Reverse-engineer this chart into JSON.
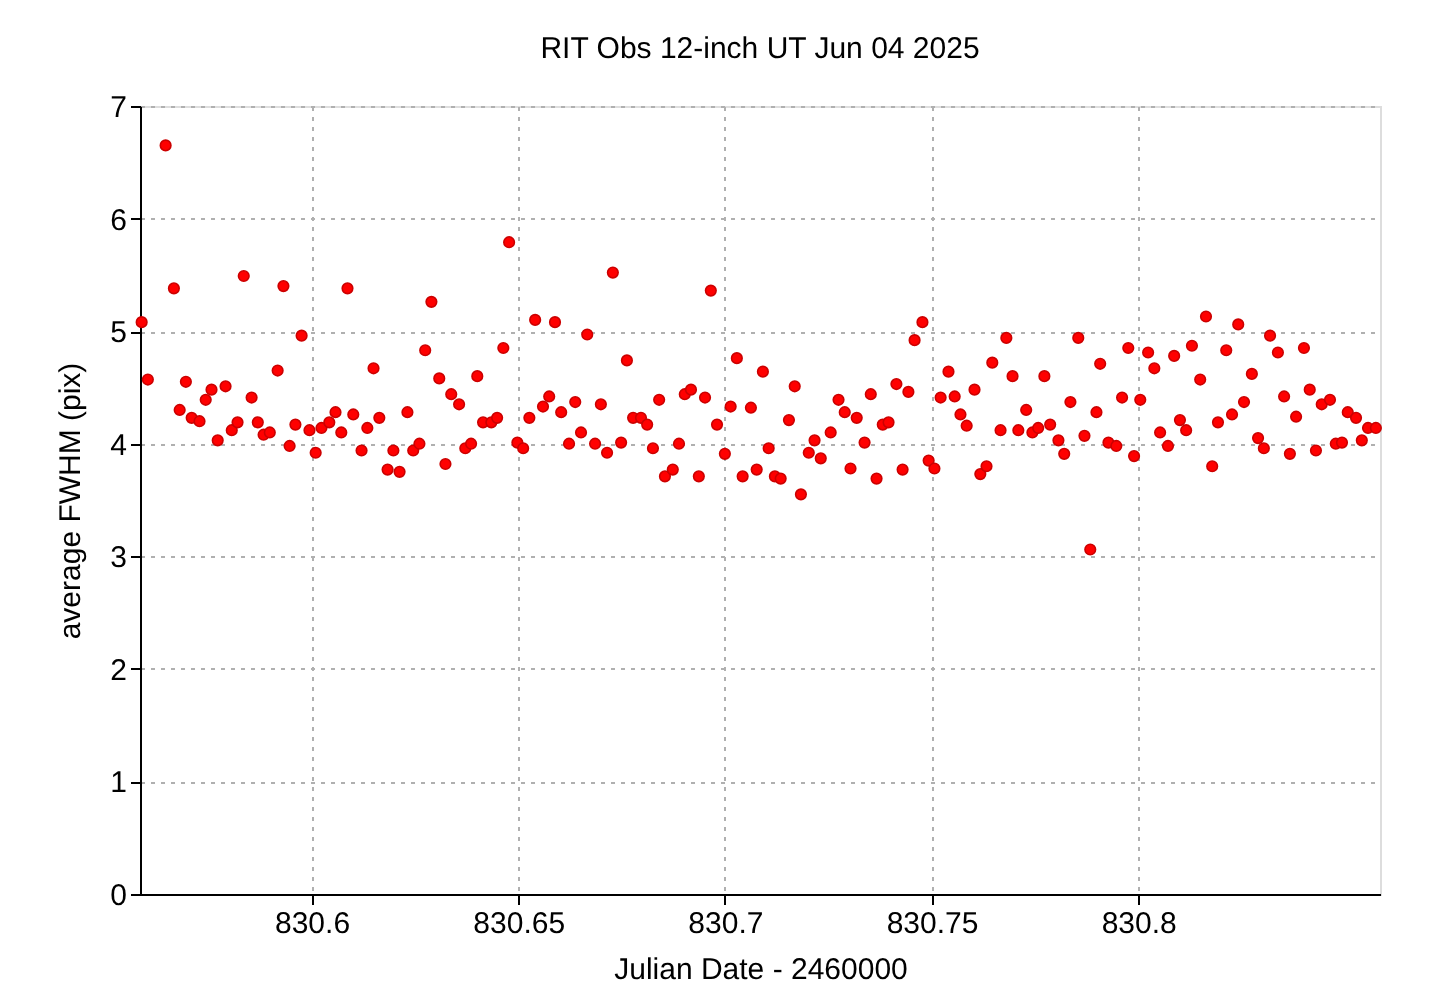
{
  "chart_data": {
    "type": "scatter",
    "title": "RIT Obs 12-inch UT Jun 04 2025",
    "xlabel": "Julian Date - 2460000",
    "ylabel": "average FWHM (pix)",
    "xlim": [
      830.5585,
      830.8585
    ],
    "ylim": [
      0,
      7
    ],
    "xticks": [
      830.6,
      830.65,
      830.7,
      830.75,
      830.8
    ],
    "yticks": [
      0,
      1,
      2,
      3,
      4,
      5,
      6,
      7
    ],
    "grid": true,
    "marker": "circle",
    "series": [
      {
        "color": "#ff0000",
        "x": [
          830.5589,
          830.5604,
          830.5647,
          830.5667,
          830.5681,
          830.5696,
          830.571,
          830.5729,
          830.5744,
          830.5758,
          830.5773,
          830.5792,
          830.5807,
          830.5821,
          830.5836,
          830.5855,
          830.587,
          830.5884,
          830.5899,
          830.5918,
          830.5932,
          830.5947,
          830.5961,
          830.5976,
          830.5995,
          830.601,
          830.6024,
          830.6043,
          830.6058,
          830.6072,
          830.6087,
          830.6101,
          830.6121,
          830.6135,
          830.615,
          830.6164,
          830.6184,
          830.6198,
          830.6213,
          830.6232,
          830.6246,
          830.6261,
          830.6275,
          830.629,
          830.6309,
          830.6324,
          830.6338,
          830.6357,
          830.6372,
          830.6386,
          830.6401,
          830.6415,
          830.6435,
          830.6449,
          830.6464,
          830.6478,
          830.6498,
          830.6512,
          830.6527,
          830.6541,
          830.656,
          830.6575,
          830.6589,
          830.6604,
          830.6623,
          830.6638,
          830.6652,
          830.6667,
          830.6686,
          830.67,
          830.6715,
          830.6729,
          830.6749,
          830.6763,
          830.6778,
          830.6797,
          830.6812,
          830.6826,
          830.6841,
          830.6855,
          830.6874,
          830.6889,
          830.6903,
          830.6918,
          830.6937,
          830.6952,
          830.6966,
          830.6981,
          830.7,
          830.7014,
          830.7029,
          830.7043,
          830.7063,
          830.7077,
          830.7092,
          830.7106,
          830.7121,
          830.7135,
          830.7155,
          830.7169,
          830.7184,
          830.7203,
          830.7217,
          830.7232,
          830.7256,
          830.7275,
          830.729,
          830.7304,
          830.7319,
          830.7338,
          830.7353,
          830.7367,
          830.7382,
          830.7396,
          830.7415,
          830.743,
          830.7444,
          830.7459,
          830.7478,
          830.7493,
          830.7507,
          830.7522,
          830.7541,
          830.7556,
          830.757,
          830.7585,
          830.7604,
          830.7618,
          830.7633,
          830.7647,
          830.7667,
          830.7681,
          830.7696,
          830.771,
          830.7729,
          830.7744,
          830.7758,
          830.7773,
          830.7787,
          830.7807,
          830.7821,
          830.7836,
          830.7855,
          830.787,
          830.7884,
          830.7899,
          830.7908,
          830.7928,
          830.7947,
          830.7961,
          830.7976,
          830.799,
          830.8005,
          830.8024,
          830.8039,
          830.8053,
          830.8072,
          830.8087,
          830.8101,
          830.8116,
          830.813,
          830.815,
          830.8164,
          830.8179,
          830.8193,
          830.8213,
          830.8227,
          830.8242,
          830.8256,
          830.8275,
          830.829,
          830.8304,
          830.8319,
          830.8338,
          830.8353,
          830.8367,
          830.8382,
          830.8401,
          830.8415,
          830.843,
          830.8444,
          830.8464,
          830.8478,
          830.8493,
          830.8507,
          830.8527,
          830.8541,
          830.8556,
          830.8575
        ],
        "values": [
          5.08,
          4.57,
          6.65,
          5.38,
          4.3,
          4.55,
          4.23,
          4.2,
          4.39,
          4.48,
          4.03,
          4.51,
          4.12,
          4.19,
          5.49,
          4.41,
          4.19,
          4.08,
          4.1,
          4.65,
          5.4,
          3.98,
          4.17,
          4.96,
          4.12,
          3.92,
          4.14,
          4.19,
          4.28,
          4.1,
          5.38,
          4.26,
          3.94,
          4.14,
          4.67,
          4.23,
          3.77,
          3.94,
          3.75,
          4.28,
          3.94,
          4.0,
          4.83,
          5.26,
          4.58,
          3.82,
          4.44,
          4.35,
          3.96,
          4.0,
          4.6,
          4.19,
          4.19,
          4.23,
          4.85,
          5.79,
          4.01,
          3.96,
          4.23,
          5.1,
          4.33,
          4.42,
          5.08,
          4.28,
          4.0,
          4.37,
          4.1,
          4.97,
          4.0,
          4.35,
          3.92,
          5.52,
          4.01,
          4.74,
          4.23,
          4.23,
          4.17,
          3.96,
          4.39,
          3.71,
          3.77,
          4.0,
          4.44,
          4.48,
          3.71,
          4.41,
          5.36,
          4.17,
          3.91,
          4.33,
          4.76,
          3.71,
          4.32,
          3.77,
          4.64,
          3.96,
          3.71,
          3.69,
          4.21,
          4.51,
          3.55,
          3.92,
          4.03,
          3.87,
          4.1,
          4.39,
          4.28,
          3.78,
          4.23,
          4.01,
          4.44,
          3.69,
          4.17,
          4.19,
          4.53,
          3.77,
          4.46,
          4.92,
          5.08,
          3.85,
          3.78,
          4.41,
          4.64,
          4.42,
          4.26,
          4.16,
          4.48,
          3.73,
          3.8,
          4.72,
          4.12,
          4.94,
          4.6,
          4.12,
          4.3,
          4.1,
          4.14,
          4.6,
          4.17,
          4.03,
          3.91,
          4.37,
          4.94,
          4.07,
          3.06,
          4.28,
          4.71,
          4.01,
          3.98,
          4.41,
          4.85,
          3.89,
          4.39,
          4.81,
          4.67,
          4.1,
          3.98,
          4.78,
          4.21,
          4.12,
          4.87,
          4.57,
          5.13,
          3.8,
          4.19,
          4.83,
          4.26,
          5.06,
          4.37,
          4.62,
          4.05,
          3.96,
          4.96,
          4.81,
          4.42,
          3.91,
          4.24,
          4.85,
          4.48,
          3.94,
          4.35,
          4.39,
          4.0,
          4.01,
          4.28,
          4.23,
          4.03,
          4.14,
          4.14
        ]
      }
    ]
  }
}
